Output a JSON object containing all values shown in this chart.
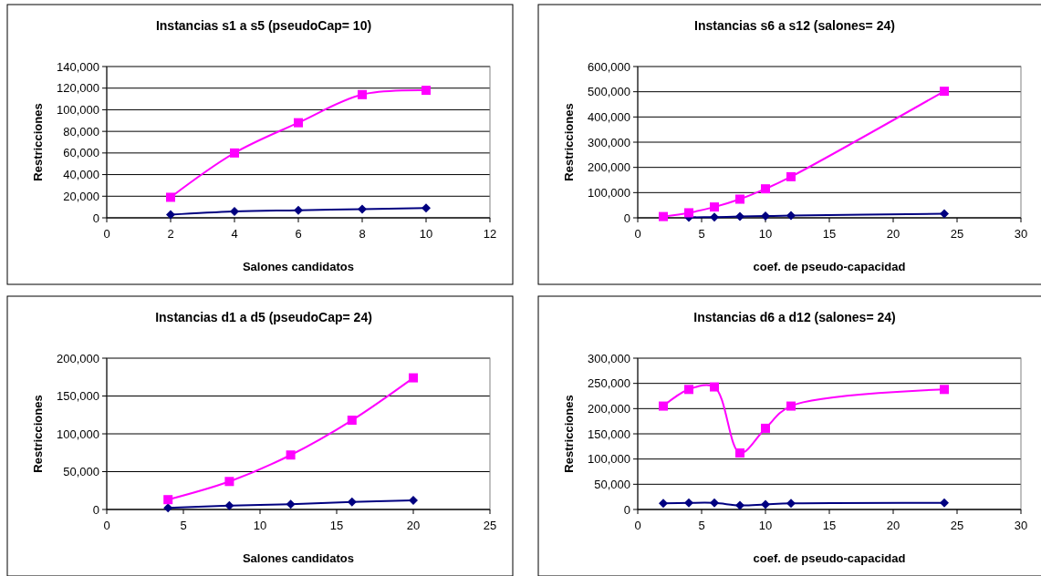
{
  "chart_data": [
    {
      "type": "line",
      "title": "Instancias s1 a s5 (pseudoCap= 10)",
      "xlabel": "Salones candidatos",
      "ylabel": "Restricciones",
      "x": [
        2,
        4,
        6,
        8,
        10
      ],
      "xlim": [
        0,
        12
      ],
      "xticks": [
        0,
        2,
        4,
        6,
        8,
        10,
        12
      ],
      "ylim": [
        0,
        140000
      ],
      "yticks": [
        {
          "value": 0,
          "label": "0"
        },
        {
          "value": 20000,
          "label": "20,000"
        },
        {
          "value": 40000,
          "label": "40,000"
        },
        {
          "value": 60000,
          "label": "60,000"
        },
        {
          "value": 80000,
          "label": "80,000"
        },
        {
          "value": 100000,
          "label": "100,000"
        },
        {
          "value": 120000,
          "label": "120,000"
        },
        {
          "value": 140000,
          "label": "140,000"
        }
      ],
      "grid": "y",
      "line_style": "solid",
      "series": [
        {
          "color": "#000080",
          "marker": "diamond",
          "values": [
            3000,
            6000,
            7000,
            8000,
            9000
          ]
        },
        {
          "color": "#ff00ff",
          "marker": "square",
          "values": [
            19000,
            60000,
            88000,
            114000,
            118000
          ]
        }
      ]
    },
    {
      "type": "line",
      "title": "Instancias s6 a s12 (salones= 24)",
      "xlabel": "coef. de pseudo-capacidad",
      "ylabel": "Restricciones",
      "x": [
        2,
        4,
        6,
        8,
        10,
        12,
        24
      ],
      "xlim": [
        0,
        30
      ],
      "xticks": [
        0,
        5,
        10,
        15,
        20,
        25,
        30
      ],
      "ylim": [
        0,
        600000
      ],
      "yticks": [
        {
          "value": 0,
          "label": "0"
        },
        {
          "value": 100000,
          "label": "100,000"
        },
        {
          "value": 200000,
          "label": "200,000"
        },
        {
          "value": 300000,
          "label": "300,000"
        },
        {
          "value": 400000,
          "label": "400,000"
        },
        {
          "value": 500000,
          "label": "500,000"
        },
        {
          "value": 600000,
          "label": "600,000"
        }
      ],
      "grid": "y",
      "line_style": "solid",
      "series": [
        {
          "color": "#000080",
          "marker": "diamond",
          "values": [
            null,
            2000,
            3000,
            5000,
            7000,
            9000,
            16000
          ]
        },
        {
          "color": "#ff00ff",
          "marker": "square",
          "values": [
            5000,
            20000,
            43000,
            74000,
            115000,
            163000,
            502000
          ]
        }
      ]
    },
    {
      "type": "line",
      "title": "Instancias d1 a d5 (pseudoCap= 24)",
      "xlabel": "Salones candidatos",
      "ylabel": "Restricciones",
      "x": [
        4,
        8,
        12,
        16,
        20
      ],
      "xlim": [
        0,
        25
      ],
      "xticks": [
        0,
        5,
        10,
        15,
        20,
        25
      ],
      "ylim": [
        0,
        200000
      ],
      "yticks": [
        {
          "value": 0,
          "label": "0"
        },
        {
          "value": 50000,
          "label": "50,000"
        },
        {
          "value": 100000,
          "label": "100,000"
        },
        {
          "value": 150000,
          "label": "150,000"
        },
        {
          "value": 200000,
          "label": "200,000"
        }
      ],
      "grid": "y",
      "line_style": "solid",
      "series": [
        {
          "color": "#000080",
          "marker": "diamond",
          "values": [
            2000,
            5000,
            7000,
            10000,
            12000
          ]
        },
        {
          "color": "#ff00ff",
          "marker": "square",
          "values": [
            13000,
            37000,
            72000,
            118000,
            174000
          ]
        }
      ]
    },
    {
      "type": "line",
      "title": "Instancias d6 a d12 (salones= 24)",
      "xlabel": "coef. de pseudo-capacidad",
      "ylabel": "Restricciones",
      "x": [
        2,
        4,
        6,
        8,
        10,
        12,
        24
      ],
      "xlim": [
        0,
        30
      ],
      "xticks": [
        0,
        5,
        10,
        15,
        20,
        25,
        30
      ],
      "ylim": [
        0,
        300000
      ],
      "yticks": [
        {
          "value": 0,
          "label": "0"
        },
        {
          "value": 50000,
          "label": "50,000"
        },
        {
          "value": 100000,
          "label": "100,000"
        },
        {
          "value": 150000,
          "label": "150,000"
        },
        {
          "value": 200000,
          "label": "200,000"
        },
        {
          "value": 250000,
          "label": "250,000"
        },
        {
          "value": 300000,
          "label": "300,000"
        }
      ],
      "grid": "y",
      "line_style": "solid",
      "series": [
        {
          "color": "#000080",
          "marker": "diamond",
          "values": [
            12000,
            13000,
            13000,
            8000,
            10000,
            12000,
            13000
          ]
        },
        {
          "color": "#ff00ff",
          "marker": "square",
          "values": [
            205000,
            238000,
            243000,
            112000,
            161000,
            205000,
            238000
          ]
        }
      ]
    }
  ]
}
